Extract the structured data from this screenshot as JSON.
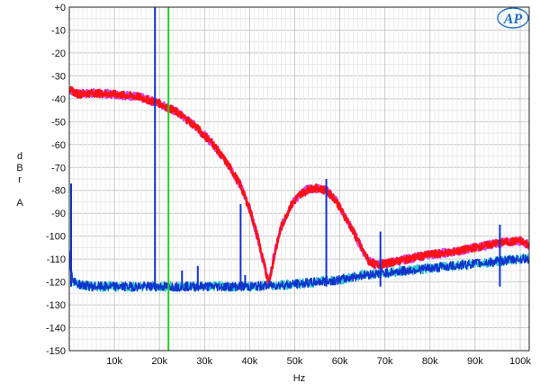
{
  "chart_data": {
    "type": "line",
    "title": "",
    "xlabel": "Hz",
    "ylabel": [
      "d",
      "B",
      "r",
      "",
      "A"
    ],
    "xlim": [
      0,
      102000
    ],
    "ylim": [
      -150,
      0
    ],
    "x_ticks": [
      {
        "v": 10000,
        "label": "10k"
      },
      {
        "v": 20000,
        "label": "20k"
      },
      {
        "v": 30000,
        "label": "30k"
      },
      {
        "v": 40000,
        "label": "40k"
      },
      {
        "v": 50000,
        "label": "50k"
      },
      {
        "v": 60000,
        "label": "60k"
      },
      {
        "v": 70000,
        "label": "70k"
      },
      {
        "v": 80000,
        "label": "80k"
      },
      {
        "v": 90000,
        "label": "90k"
      },
      {
        "v": 100000,
        "label": "100k"
      }
    ],
    "y_ticks": [
      {
        "v": 0,
        "label": "+0"
      },
      {
        "v": -10,
        "label": "-10"
      },
      {
        "v": -20,
        "label": "-20"
      },
      {
        "v": -30,
        "label": "-30"
      },
      {
        "v": -40,
        "label": "-40"
      },
      {
        "v": -50,
        "label": "-50"
      },
      {
        "v": -60,
        "label": "-60"
      },
      {
        "v": -70,
        "label": "-70"
      },
      {
        "v": -80,
        "label": "-80"
      },
      {
        "v": -90,
        "label": "-90"
      },
      {
        "v": -100,
        "label": "-100"
      },
      {
        "v": -110,
        "label": "-110"
      },
      {
        "v": -120,
        "label": "-120"
      },
      {
        "v": -130,
        "label": "-130"
      },
      {
        "v": -140,
        "label": "-140"
      },
      {
        "v": -150,
        "label": "-150"
      }
    ],
    "grid": true,
    "logo_text": "AP",
    "series": [
      {
        "color": "#cc44ff",
        "x": [
          0,
          2000,
          5000,
          10000,
          15000,
          20000,
          24000,
          28000,
          32000,
          36000,
          38000,
          40000,
          42000,
          43000,
          44300,
          45500,
          47000,
          49000,
          51000,
          53000,
          55000,
          57000,
          59000,
          61000,
          63000,
          65000,
          66500,
          68000,
          70000,
          75000,
          80000,
          85000,
          90000,
          95000,
          100000,
          102000
        ],
        "y": [
          -36,
          -38,
          -37.5,
          -38,
          -39,
          -42,
          -46,
          -52,
          -60,
          -71,
          -78,
          -88,
          -102,
          -111,
          -120,
          -108,
          -96,
          -87,
          -82,
          -79.5,
          -79,
          -80,
          -84,
          -91,
          -98,
          -106,
          -111,
          -112.5,
          -112,
          -110,
          -108,
          -107,
          -105,
          -103,
          -102,
          -104
        ]
      },
      {
        "color": "#ff1111",
        "x": [
          0,
          2000,
          5000,
          10000,
          15000,
          20000,
          24000,
          28000,
          32000,
          36000,
          38000,
          40000,
          42000,
          43000,
          44300,
          45500,
          47000,
          49000,
          51000,
          53000,
          55000,
          57000,
          59000,
          61000,
          63000,
          65000,
          66500,
          68000,
          70000,
          75000,
          80000,
          85000,
          90000,
          95000,
          100000,
          102000
        ],
        "y": [
          -36,
          -38,
          -37.5,
          -38,
          -39,
          -42,
          -46,
          -52,
          -60,
          -71,
          -78,
          -88,
          -102,
          -111,
          -121,
          -108,
          -96,
          -87,
          -82,
          -79.5,
          -79,
          -80,
          -84,
          -91,
          -98,
          -106,
          -111,
          -112.5,
          -112,
          -110,
          -108,
          -107,
          -105,
          -103,
          -102,
          -104
        ]
      },
      {
        "color": "#22cccc",
        "x": [
          0,
          300,
          1000,
          2000,
          5000,
          10000,
          20000,
          30000,
          40000,
          50000,
          55000,
          60000,
          65000,
          70000,
          75000,
          80000,
          85000,
          90000,
          95000,
          100000,
          102000
        ],
        "y": [
          -112,
          -116,
          -120,
          -121,
          -122,
          -122,
          -122,
          -122,
          -122,
          -121,
          -120,
          -119,
          -117,
          -116,
          -115,
          -114,
          -113,
          -112,
          -111,
          -110,
          -110
        ]
      },
      {
        "color": "#1133cc",
        "x": [
          0,
          300,
          1000,
          2000,
          5000,
          10000,
          20000,
          30000,
          40000,
          50000,
          55000,
          60000,
          65000,
          70000,
          75000,
          80000,
          85000,
          90000,
          95000,
          100000,
          102000
        ],
        "y": [
          -105,
          -114,
          -120,
          -121,
          -122,
          -122,
          -122,
          -122,
          -122,
          -121,
          -120,
          -119,
          -117,
          -116,
          -115,
          -114,
          -113,
          -112,
          -111,
          -110,
          -110
        ]
      }
    ],
    "spikes": [
      {
        "x": 19000,
        "y": 0,
        "color": "#1133cc"
      },
      {
        "x": 25000,
        "y": -115,
        "color": "#1133cc"
      },
      {
        "x": 28500,
        "y": -113,
        "color": "#1133cc"
      },
      {
        "x": 38000,
        "y": -86,
        "color": "#1133cc"
      },
      {
        "x": 39000,
        "y": -117,
        "color": "#1133cc"
      },
      {
        "x": 50000,
        "y": -120,
        "color": "#1133cc"
      },
      {
        "x": 57000,
        "y": -75,
        "color": "#1133cc"
      },
      {
        "x": 69000,
        "y": -98,
        "color": "#1133cc"
      },
      {
        "x": 95500,
        "y": -95,
        "color": "#1133cc"
      },
      {
        "x": 400,
        "y": -77,
        "color": "#1133cc"
      }
    ],
    "marker_lines": [
      {
        "x": 22000,
        "color": "#22cc22"
      }
    ]
  }
}
